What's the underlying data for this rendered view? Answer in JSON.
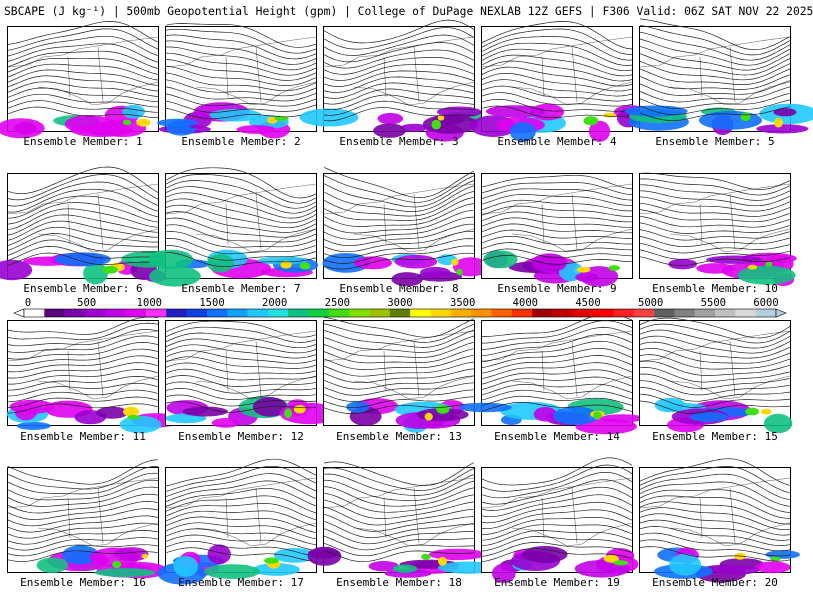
{
  "header": {
    "title": "SBCAPE (J kg⁻¹) | 500mb Geopotential Height (gpm) | College of DuPage NEXLAB 12Z GEFS | F306 Valid: 06Z SAT NOV 22 2025"
  },
  "members": [
    {
      "label": "Ensemble Member: 1"
    },
    {
      "label": "Ensemble Member: 2"
    },
    {
      "label": "Ensemble Member: 3"
    },
    {
      "label": "Ensemble Member: 4"
    },
    {
      "label": "Ensemble Member: 5"
    },
    {
      "label": "Ensemble Member: 6"
    },
    {
      "label": "Ensemble Member: 7"
    },
    {
      "label": "Ensemble Member: 8"
    },
    {
      "label": "Ensemble Member: 9"
    },
    {
      "label": "Ensemble Member: 10"
    },
    {
      "label": "Ensemble Member: 11"
    },
    {
      "label": "Ensemble Member: 12"
    },
    {
      "label": "Ensemble Member: 13"
    },
    {
      "label": "Ensemble Member: 14"
    },
    {
      "label": "Ensemble Member: 15"
    },
    {
      "label": "Ensemble Member: 16"
    },
    {
      "label": "Ensemble Member: 17"
    },
    {
      "label": "Ensemble Member: 18"
    },
    {
      "label": "Ensemble Member: 19"
    },
    {
      "label": "Ensemble Member: 20"
    }
  ],
  "colorbar": {
    "ticks": [
      "0",
      "500",
      "1000",
      "1500",
      "2000",
      "2500",
      "3000",
      "3500",
      "4000",
      "4500",
      "5000",
      "5500",
      "6000"
    ],
    "colors": [
      "#ffffff",
      "#5a007a",
      "#7a00a8",
      "#9a00d0",
      "#c000e8",
      "#e000f0",
      "#ff30ff",
      "#2020c0",
      "#1040e0",
      "#1070ff",
      "#10a0ff",
      "#20c8ff",
      "#20e0e0",
      "#10c080",
      "#10d040",
      "#40e010",
      "#80e000",
      "#a0c000",
      "#608000",
      "#ffff00",
      "#ffd800",
      "#ffb000",
      "#ff9000",
      "#ff6000",
      "#ff3000",
      "#a00000",
      "#c00000",
      "#e00000",
      "#ff0000",
      "#ff2020",
      "#ff4040",
      "#606060",
      "#808080",
      "#a0a0a0",
      "#c0c0c0",
      "#d8d8d8",
      "#b0d0e0"
    ]
  }
}
